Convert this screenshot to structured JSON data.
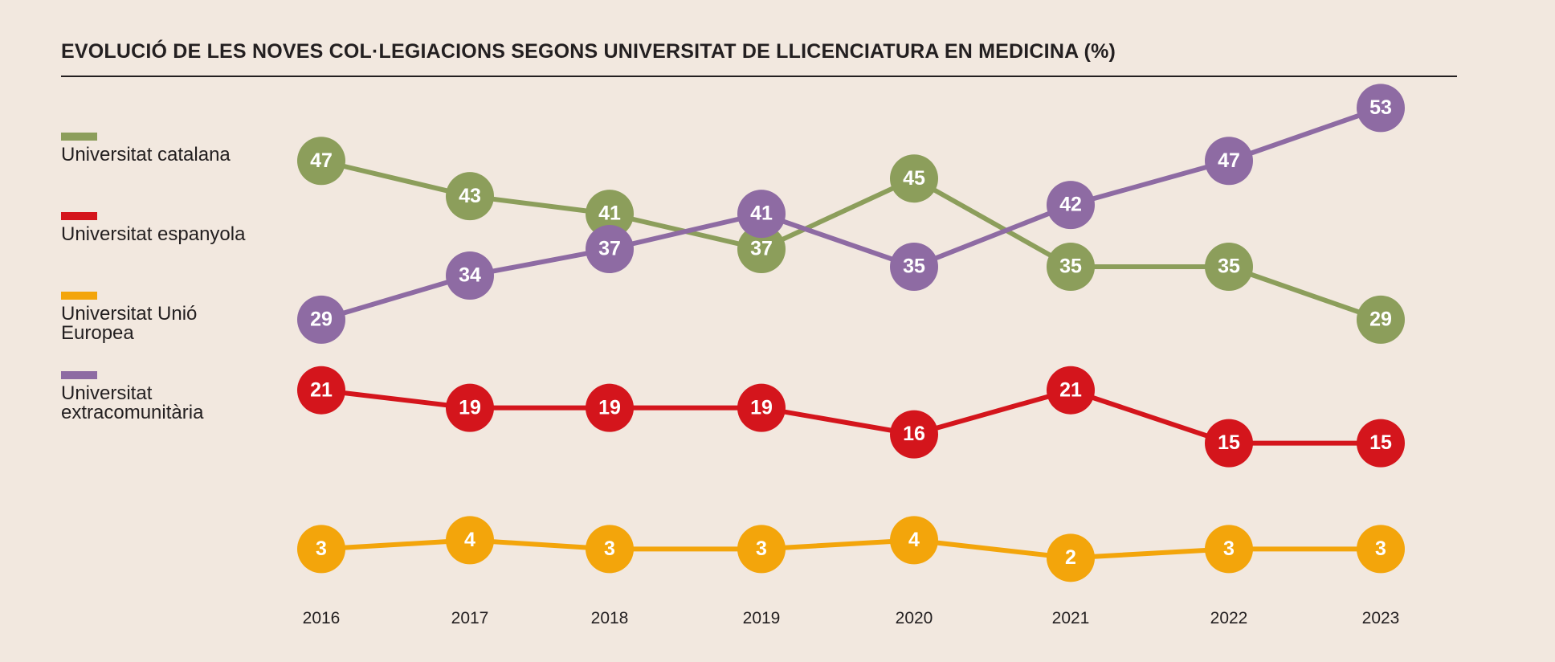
{
  "title": "EVOLUCIÓ DE LES NOVES COL·LEGIACIONS SEGONS UNIVERSITAT DE LLICENCIATURA EN MEDICINA (%)",
  "legend": {
    "items": [
      {
        "label": "Universitat catalana",
        "color": "#8c9e5b"
      },
      {
        "label": "Universitat espanyola",
        "color": "#d4151c"
      },
      {
        "label": "Universitat Unió Europea",
        "color": "#f3a50b"
      },
      {
        "label": "Universitat extracomunitària",
        "color": "#8e6ba3"
      }
    ]
  },
  "chart_data": {
    "type": "line",
    "title": "EVOLUCIÓ DE LES NOVES COL·LEGIACIONS SEGONS UNIVERSITAT DE LLICENCIATURA EN MEDICINA (%)",
    "x": [
      "2016",
      "2017",
      "2018",
      "2019",
      "2020",
      "2021",
      "2022",
      "2023"
    ],
    "xlabel": "",
    "ylabel": "",
    "ylim": [
      0,
      55
    ],
    "grid": false,
    "legend_position": "left",
    "data_labels": true,
    "series": [
      {
        "name": "Universitat catalana",
        "color": "#8c9e5b",
        "values": [
          47,
          43,
          41,
          37,
          45,
          35,
          35,
          29
        ]
      },
      {
        "name": "Universitat espanyola",
        "color": "#d4151c",
        "values": [
          21,
          19,
          19,
          19,
          16,
          21,
          15,
          15
        ]
      },
      {
        "name": "Universitat Unió Europea",
        "color": "#f3a50b",
        "values": [
          3,
          4,
          3,
          3,
          4,
          2,
          3,
          3
        ]
      },
      {
        "name": "Universitat extracomunitària",
        "color": "#8e6ba3",
        "values": [
          29,
          34,
          37,
          41,
          35,
          42,
          47,
          53
        ]
      }
    ]
  }
}
